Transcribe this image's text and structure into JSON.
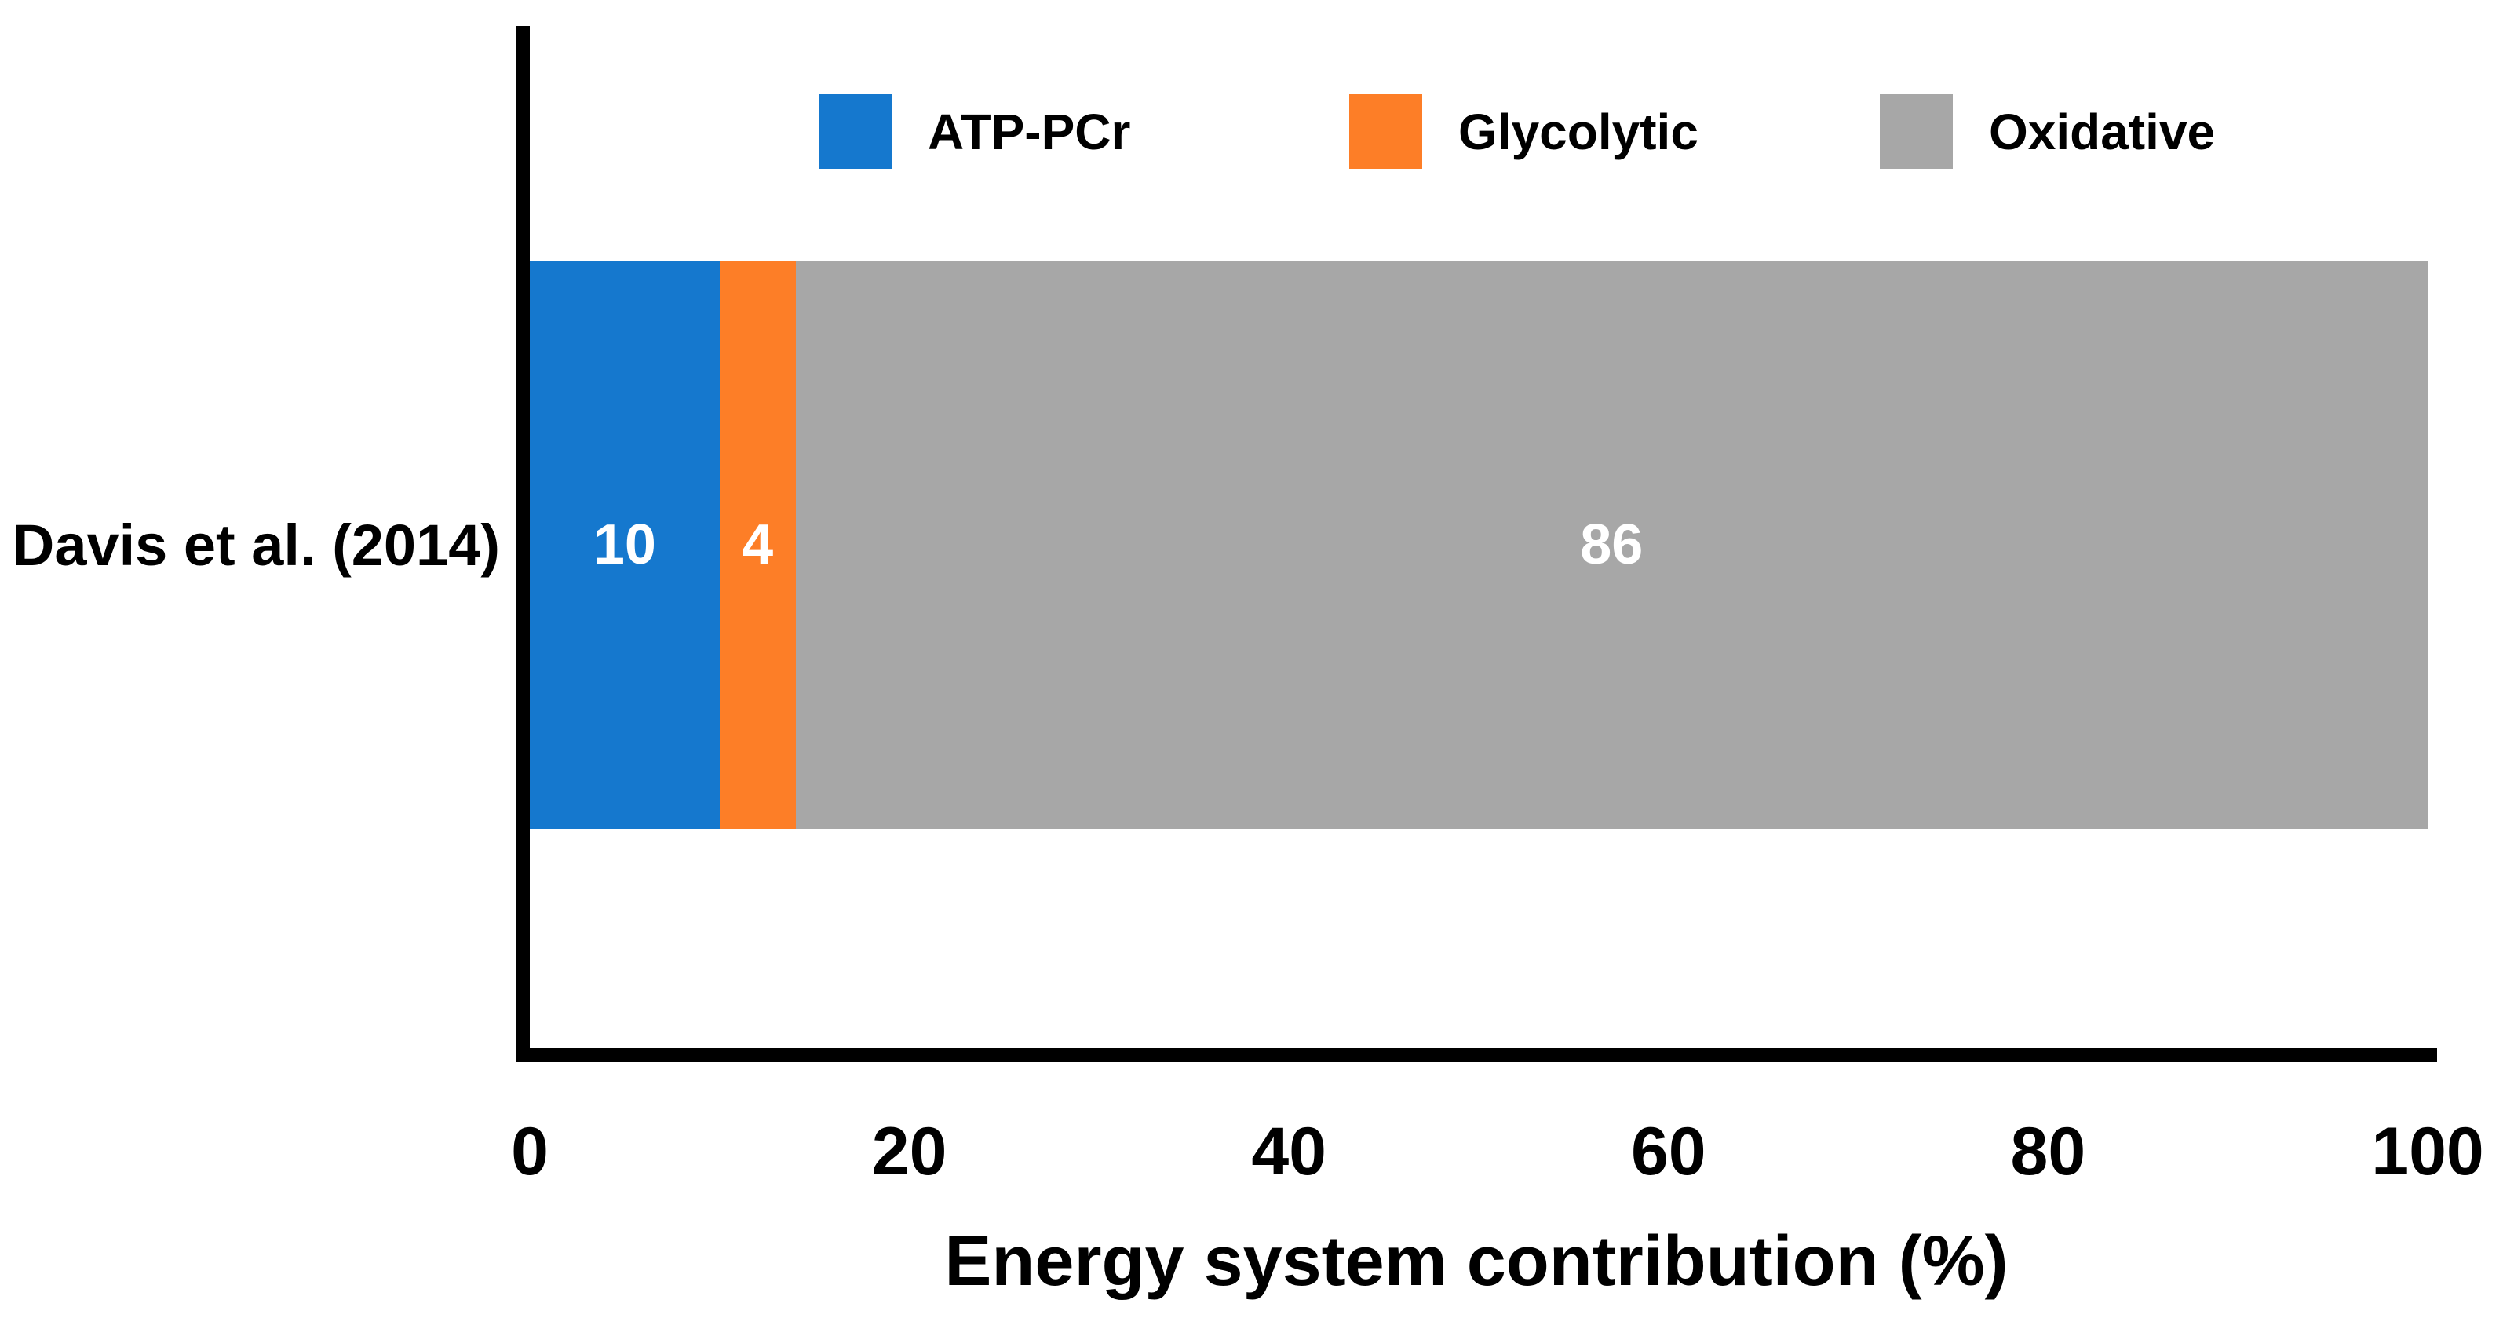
{
  "chart_data": {
    "type": "bar",
    "orientation": "horizontal",
    "stacked": true,
    "title": "",
    "xlabel": "Energy system contribution (%)",
    "ylabel": "",
    "categories": [
      "Davis et al. (2014)"
    ],
    "series": [
      {
        "name": "ATP-PCr",
        "values": [
          10
        ],
        "color": "#1578CE"
      },
      {
        "name": "Glycolytic",
        "values": [
          4
        ],
        "color": "#FD7E27"
      },
      {
        "name": "Oxidative",
        "values": [
          86
        ],
        "color": "#A7A7A7"
      }
    ],
    "xlim": [
      0,
      100
    ],
    "xticks": [
      0,
      20,
      40,
      60,
      80,
      100
    ],
    "grid": false,
    "legend_position": "top",
    "value_labels_shown": true,
    "value_label_color": "#FFFFFF",
    "axis_color": "#000000",
    "background_color": "#FFFFFF"
  }
}
